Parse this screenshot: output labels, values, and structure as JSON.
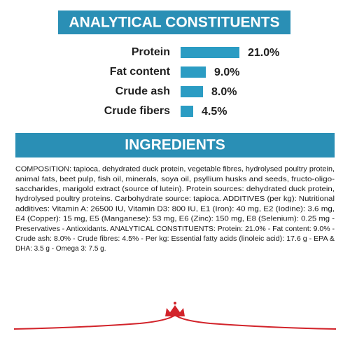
{
  "header": {
    "title": "ANALYTICAL CONSTITUENTS"
  },
  "chart_data": {
    "type": "hbar",
    "categories": [
      "Protein",
      "Fat content",
      "Crude ash",
      "Crude fibers"
    ],
    "values": [
      21.0,
      9.0,
      8.0,
      4.5
    ],
    "value_labels": [
      "21.0%",
      "9.0%",
      "8.0%",
      "4.5%"
    ],
    "color": "#2b9cc3"
  },
  "ingredients": {
    "title": "INGREDIENTS",
    "lines": [
      "COMPOSITION: tapioca, dehydrated duck protein, vegetable fibres, hydrolysed poultry protein,",
      "animal fats, beet pulp, fish oil, minerals, soya oil, psyllium husks and seeds, fructo-oligo-",
      "saccharides, marigold extract (source of lutein). Protein sources: dehydrated duck protein,",
      "hydrolysed poultry proteins. Carbohydrate source: tapioca. ADDITIVES (per kg): Nutritional",
      "additives: Vitamin A: 26500 IU, Vitamin D3: 800 IU, E1 (Iron): 40 mg, E2 (Iodine): 3.6 mg,",
      "E4 (Copper): 15 mg, E5 (Manganese): 53 mg, E6 (Zinc): 150 mg, E8 (Selenium): 0.25 mg -",
      "Preservatives - Antioxidants. ANALYTICAL CONSTITUENTS: Protein: 21.0% - Fat content: 9.0% -",
      "Crude ash: 8.0% - Crude fibres: 4.5% - Per kg: Essential fatty acids (linoleic acid): 17.6 g - EPA &",
      "DHA: 3.5 g - Omega 3: 7.5 g."
    ]
  }
}
